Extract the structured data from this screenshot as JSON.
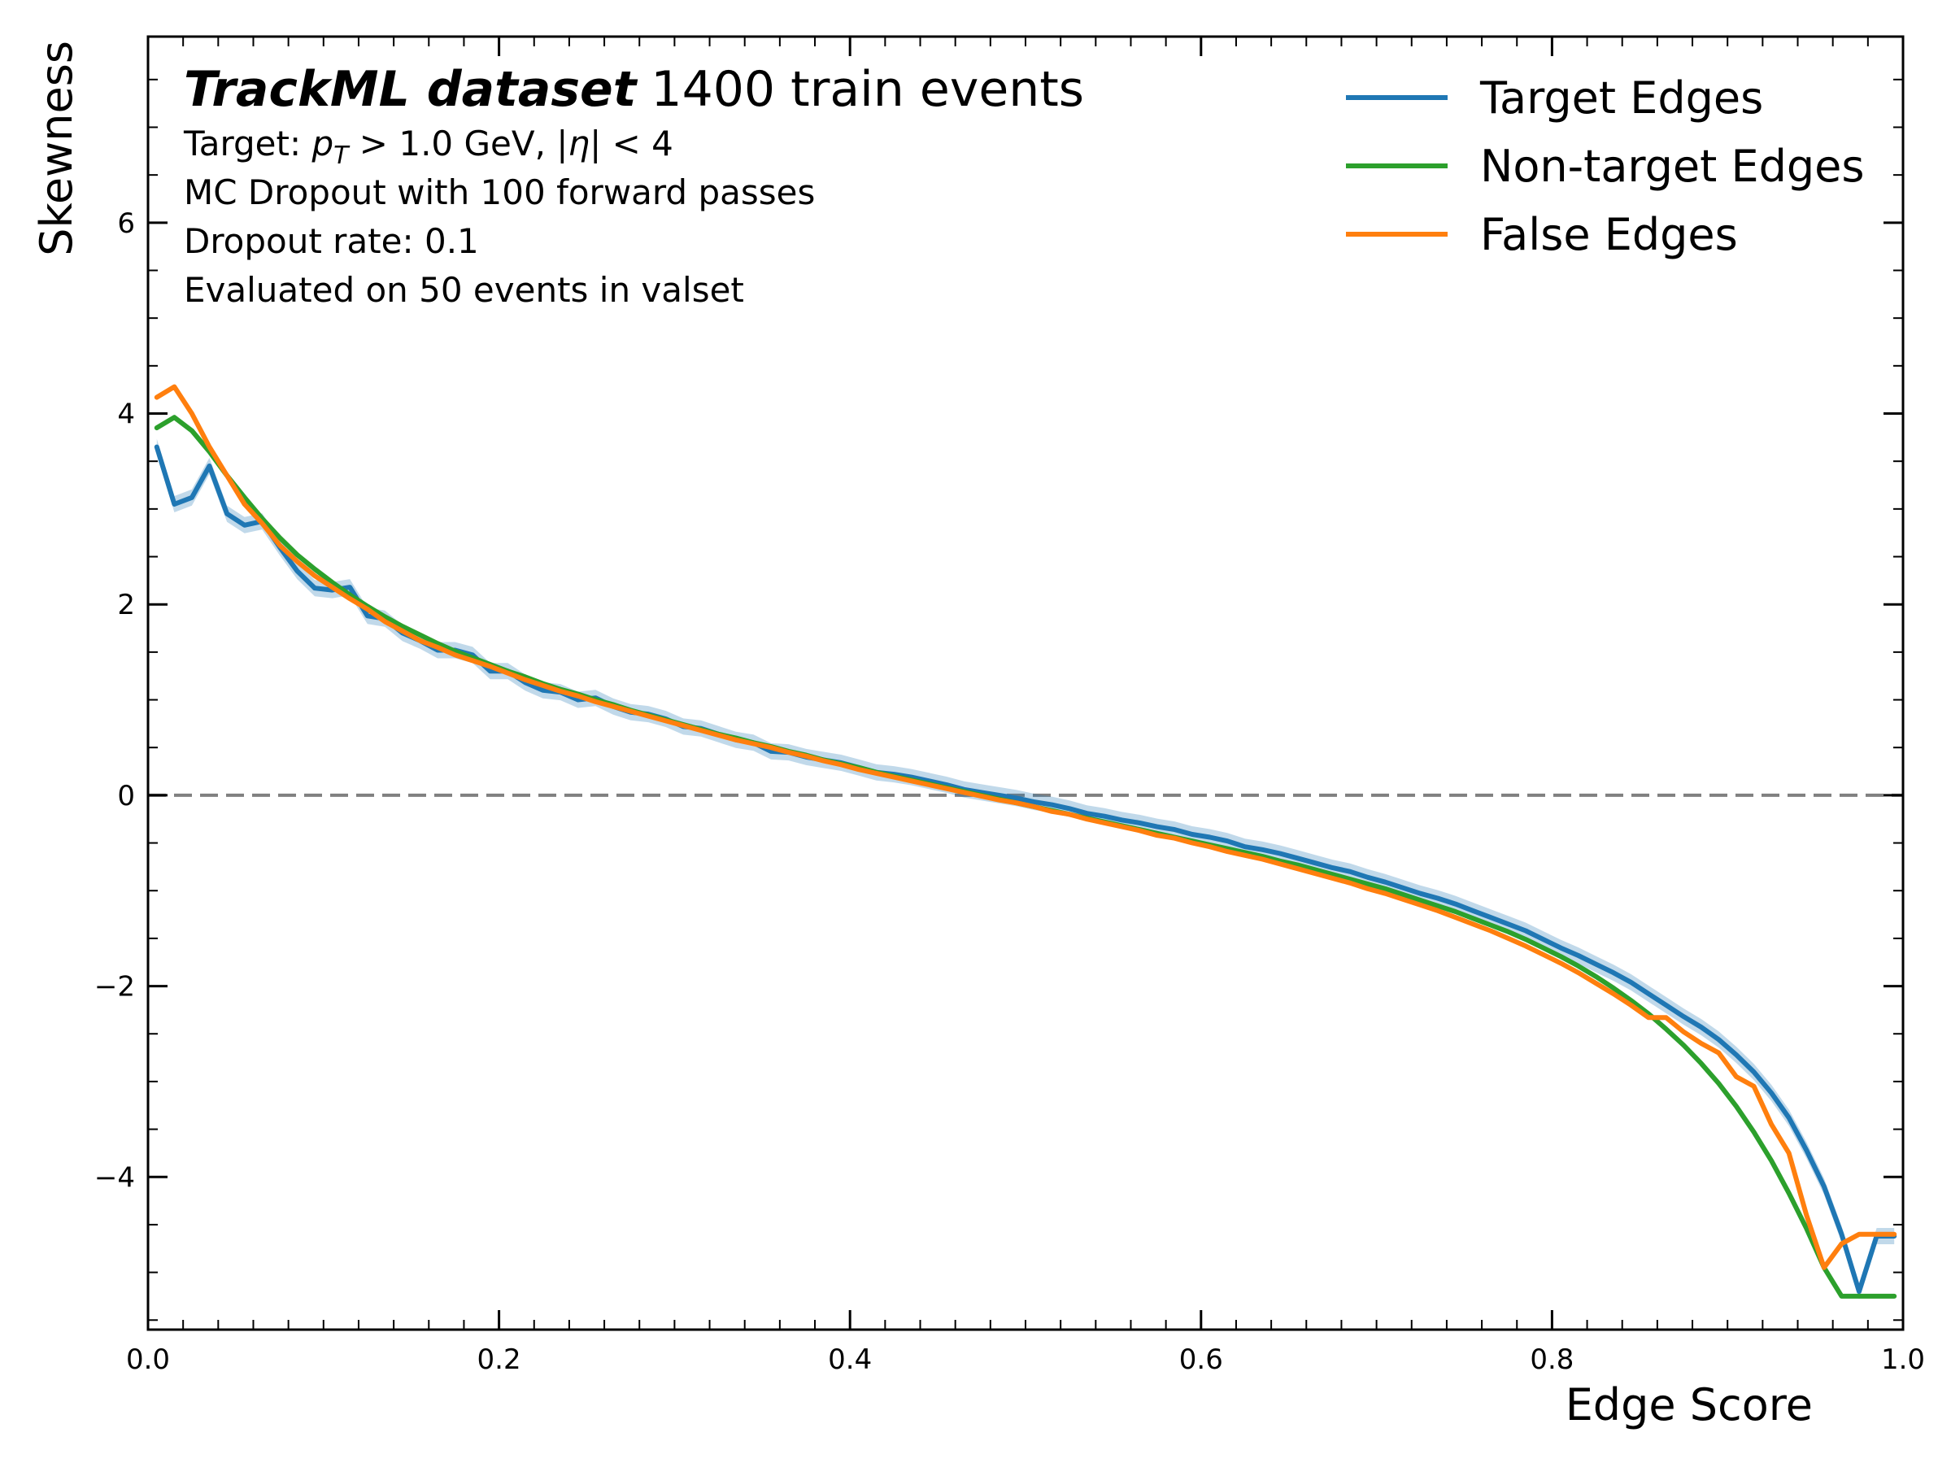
{
  "chart_data": {
    "type": "line",
    "xlabel": "Edge Score",
    "ylabel": "Skewness",
    "xlim": [
      0.0,
      1.0
    ],
    "ylim": [
      -5.6,
      7.95
    ],
    "xticks": [
      "0.0",
      "0.2",
      "0.4",
      "0.6",
      "0.8",
      "1.0"
    ],
    "yticks": [
      "−4",
      "−2",
      "0",
      "2",
      "4",
      "6"
    ],
    "grid": false,
    "legend_position": "top-right",
    "reference_line": {
      "y": 0,
      "style": "dashed",
      "color": "#808080"
    },
    "annotations": {
      "title_bold": "TrackML dataset",
      "title_rest": "1400 train events",
      "line1_prefix": "Target: ",
      "line1_pt": "p",
      "line1_sub": "T",
      "line1_mid": " > 1.0 GeV, |",
      "line1_eta": "η",
      "line1_end": "| < 4",
      "line2": "MC Dropout with 100 forward passes",
      "line3": "Dropout rate: 0.1",
      "line4": "Evaluated on 50 events in valset"
    },
    "series": [
      {
        "name": "Target Edges",
        "color": "#1f77b4",
        "band": true,
        "x": [
          0.005,
          0.015,
          0.025,
          0.035,
          0.045,
          0.055,
          0.065,
          0.075,
          0.085,
          0.095,
          0.105,
          0.115,
          0.125,
          0.135,
          0.145,
          0.155,
          0.165,
          0.175,
          0.185,
          0.195,
          0.205,
          0.215,
          0.225,
          0.235,
          0.245,
          0.255,
          0.265,
          0.275,
          0.285,
          0.295,
          0.305,
          0.315,
          0.325,
          0.335,
          0.345,
          0.355,
          0.365,
          0.375,
          0.385,
          0.395,
          0.405,
          0.415,
          0.425,
          0.435,
          0.445,
          0.455,
          0.465,
          0.475,
          0.485,
          0.495,
          0.505,
          0.515,
          0.525,
          0.535,
          0.545,
          0.555,
          0.565,
          0.575,
          0.585,
          0.595,
          0.605,
          0.615,
          0.625,
          0.635,
          0.645,
          0.655,
          0.665,
          0.675,
          0.685,
          0.695,
          0.705,
          0.715,
          0.725,
          0.735,
          0.745,
          0.755,
          0.765,
          0.775,
          0.785,
          0.795,
          0.805,
          0.815,
          0.825,
          0.835,
          0.845,
          0.855,
          0.865,
          0.875,
          0.885,
          0.895,
          0.905,
          0.915,
          0.925,
          0.935,
          0.945,
          0.955,
          0.965,
          0.975,
          0.985,
          0.995
        ],
        "y": [
          3.65,
          3.05,
          3.12,
          3.45,
          2.95,
          2.83,
          2.87,
          2.6,
          2.35,
          2.17,
          2.15,
          2.18,
          1.88,
          1.85,
          1.7,
          1.62,
          1.52,
          1.52,
          1.47,
          1.3,
          1.3,
          1.18,
          1.1,
          1.08,
          1.0,
          1.02,
          0.93,
          0.87,
          0.85,
          0.8,
          0.72,
          0.7,
          0.64,
          0.58,
          0.55,
          0.46,
          0.45,
          0.4,
          0.37,
          0.34,
          0.29,
          0.24,
          0.22,
          0.19,
          0.15,
          0.11,
          0.06,
          0.03,
          0.0,
          -0.03,
          -0.07,
          -0.1,
          -0.14,
          -0.19,
          -0.22,
          -0.26,
          -0.29,
          -0.33,
          -0.36,
          -0.41,
          -0.44,
          -0.48,
          -0.54,
          -0.57,
          -0.61,
          -0.66,
          -0.71,
          -0.76,
          -0.8,
          -0.86,
          -0.91,
          -0.97,
          -1.03,
          -1.08,
          -1.14,
          -1.21,
          -1.28,
          -1.35,
          -1.42,
          -1.51,
          -1.6,
          -1.68,
          -1.77,
          -1.86,
          -1.96,
          -2.08,
          -2.2,
          -2.32,
          -2.43,
          -2.56,
          -2.72,
          -2.9,
          -3.12,
          -3.38,
          -3.72,
          -4.1,
          -4.6,
          -5.2,
          -4.62,
          -4.62
        ]
      },
      {
        "name": "Non-target Edges",
        "color": "#2ca02c",
        "band": false,
        "x": [
          0.005,
          0.015,
          0.025,
          0.035,
          0.045,
          0.055,
          0.065,
          0.075,
          0.085,
          0.095,
          0.105,
          0.115,
          0.125,
          0.135,
          0.145,
          0.155,
          0.165,
          0.175,
          0.185,
          0.195,
          0.205,
          0.215,
          0.225,
          0.235,
          0.245,
          0.255,
          0.265,
          0.275,
          0.285,
          0.295,
          0.305,
          0.315,
          0.325,
          0.335,
          0.345,
          0.355,
          0.365,
          0.375,
          0.385,
          0.395,
          0.405,
          0.415,
          0.425,
          0.435,
          0.445,
          0.455,
          0.465,
          0.475,
          0.485,
          0.495,
          0.505,
          0.515,
          0.525,
          0.535,
          0.545,
          0.555,
          0.565,
          0.575,
          0.585,
          0.595,
          0.605,
          0.615,
          0.625,
          0.635,
          0.645,
          0.655,
          0.665,
          0.675,
          0.685,
          0.695,
          0.705,
          0.715,
          0.725,
          0.735,
          0.745,
          0.755,
          0.765,
          0.775,
          0.785,
          0.795,
          0.805,
          0.815,
          0.825,
          0.835,
          0.845,
          0.855,
          0.865,
          0.875,
          0.885,
          0.895,
          0.905,
          0.915,
          0.925,
          0.935,
          0.945,
          0.955,
          0.965,
          0.975,
          0.985,
          0.995
        ],
        "y": [
          3.85,
          3.96,
          3.82,
          3.6,
          3.35,
          3.12,
          2.9,
          2.7,
          2.52,
          2.37,
          2.23,
          2.1,
          1.98,
          1.87,
          1.77,
          1.68,
          1.59,
          1.51,
          1.44,
          1.37,
          1.3,
          1.24,
          1.17,
          1.11,
          1.06,
          1.0,
          0.95,
          0.89,
          0.84,
          0.79,
          0.74,
          0.69,
          0.64,
          0.6,
          0.55,
          0.51,
          0.46,
          0.42,
          0.37,
          0.33,
          0.29,
          0.24,
          0.2,
          0.16,
          0.12,
          0.08,
          0.04,
          0.0,
          -0.04,
          -0.08,
          -0.12,
          -0.16,
          -0.2,
          -0.24,
          -0.28,
          -0.32,
          -0.36,
          -0.4,
          -0.44,
          -0.48,
          -0.52,
          -0.56,
          -0.6,
          -0.64,
          -0.69,
          -0.73,
          -0.78,
          -0.83,
          -0.88,
          -0.93,
          -0.98,
          -1.04,
          -1.1,
          -1.16,
          -1.22,
          -1.29,
          -1.36,
          -1.43,
          -1.51,
          -1.6,
          -1.69,
          -1.79,
          -1.9,
          -2.02,
          -2.15,
          -2.29,
          -2.45,
          -2.62,
          -2.81,
          -3.02,
          -3.26,
          -3.53,
          -3.83,
          -4.17,
          -4.54,
          -4.95,
          -5.25,
          -5.25,
          -5.25,
          -5.25
        ]
      },
      {
        "name": "False Edges",
        "color": "#ff7f0e",
        "band": false,
        "x": [
          0.005,
          0.015,
          0.025,
          0.035,
          0.045,
          0.055,
          0.065,
          0.075,
          0.085,
          0.095,
          0.105,
          0.115,
          0.125,
          0.135,
          0.145,
          0.155,
          0.165,
          0.175,
          0.185,
          0.195,
          0.205,
          0.215,
          0.225,
          0.235,
          0.245,
          0.255,
          0.265,
          0.275,
          0.285,
          0.295,
          0.305,
          0.315,
          0.325,
          0.335,
          0.345,
          0.355,
          0.365,
          0.375,
          0.385,
          0.395,
          0.405,
          0.415,
          0.425,
          0.435,
          0.445,
          0.455,
          0.465,
          0.475,
          0.485,
          0.495,
          0.505,
          0.515,
          0.525,
          0.535,
          0.545,
          0.555,
          0.565,
          0.575,
          0.585,
          0.595,
          0.605,
          0.615,
          0.625,
          0.635,
          0.645,
          0.655,
          0.665,
          0.675,
          0.685,
          0.695,
          0.705,
          0.715,
          0.725,
          0.735,
          0.745,
          0.755,
          0.765,
          0.775,
          0.785,
          0.795,
          0.805,
          0.815,
          0.825,
          0.835,
          0.845,
          0.855,
          0.865,
          0.875,
          0.885,
          0.895,
          0.905,
          0.915,
          0.925,
          0.935,
          0.945,
          0.955,
          0.965,
          0.975,
          0.985,
          0.995
        ],
        "y": [
          4.17,
          4.28,
          4.0,
          3.65,
          3.35,
          3.05,
          2.85,
          2.62,
          2.45,
          2.3,
          2.18,
          2.06,
          1.95,
          1.82,
          1.72,
          1.62,
          1.55,
          1.47,
          1.41,
          1.35,
          1.28,
          1.21,
          1.15,
          1.09,
          1.04,
          0.98,
          0.93,
          0.88,
          0.83,
          0.78,
          0.73,
          0.68,
          0.63,
          0.58,
          0.54,
          0.5,
          0.45,
          0.41,
          0.36,
          0.32,
          0.27,
          0.23,
          0.19,
          0.15,
          0.11,
          0.07,
          0.03,
          -0.01,
          -0.05,
          -0.08,
          -0.12,
          -0.17,
          -0.2,
          -0.25,
          -0.29,
          -0.33,
          -0.37,
          -0.42,
          -0.45,
          -0.5,
          -0.54,
          -0.59,
          -0.63,
          -0.67,
          -0.72,
          -0.77,
          -0.82,
          -0.87,
          -0.92,
          -0.98,
          -1.03,
          -1.09,
          -1.15,
          -1.21,
          -1.28,
          -1.35,
          -1.42,
          -1.5,
          -1.58,
          -1.67,
          -1.76,
          -1.86,
          -1.97,
          -2.08,
          -2.2,
          -2.33,
          -2.33,
          -2.48,
          -2.6,
          -2.7,
          -2.95,
          -3.05,
          -3.45,
          -3.75,
          -4.4,
          -4.95,
          -4.7,
          -4.6,
          -4.6,
          -4.6
        ]
      }
    ]
  }
}
